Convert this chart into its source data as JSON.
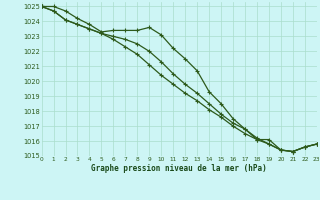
{
  "title": "Graphe pression niveau de la mer (hPa)",
  "bg_color": "#cdf5f5",
  "grid_color": "#aaddcc",
  "line_color": "#2d5a1b",
  "marker_color": "#2d5a1b",
  "xmin": 0,
  "xmax": 23,
  "ymin": 1015,
  "ymax": 1025,
  "yticks": [
    1015,
    1016,
    1017,
    1018,
    1019,
    1020,
    1021,
    1022,
    1023,
    1024,
    1025
  ],
  "xticks": [
    0,
    1,
    2,
    3,
    4,
    5,
    6,
    7,
    8,
    9,
    10,
    11,
    12,
    13,
    14,
    15,
    16,
    17,
    18,
    19,
    20,
    21,
    22,
    23
  ],
  "series1": [
    1025.0,
    1025.0,
    1024.7,
    1024.2,
    1023.8,
    1023.3,
    1023.4,
    1023.4,
    1023.4,
    1023.6,
    1023.1,
    1022.2,
    1021.5,
    1020.7,
    1019.3,
    1018.5,
    1017.5,
    1016.8,
    1016.1,
    1016.1,
    1015.4,
    1015.3,
    1015.6,
    1015.8
  ],
  "series2": [
    1025.0,
    1024.7,
    1024.1,
    1023.8,
    1023.5,
    1023.2,
    1023.0,
    1022.8,
    1022.5,
    1022.0,
    1021.3,
    1020.5,
    1019.8,
    1019.2,
    1018.5,
    1017.8,
    1017.2,
    1016.8,
    1016.2,
    1015.8,
    1015.4,
    1015.3,
    1015.6,
    1015.8
  ],
  "series3": [
    1025.0,
    1024.7,
    1024.1,
    1023.8,
    1023.5,
    1023.2,
    1022.8,
    1022.3,
    1021.8,
    1021.1,
    1020.4,
    1019.8,
    1019.2,
    1018.7,
    1018.1,
    1017.6,
    1017.0,
    1016.5,
    1016.1,
    1015.8,
    1015.4,
    1015.3,
    1015.6,
    1015.8
  ]
}
